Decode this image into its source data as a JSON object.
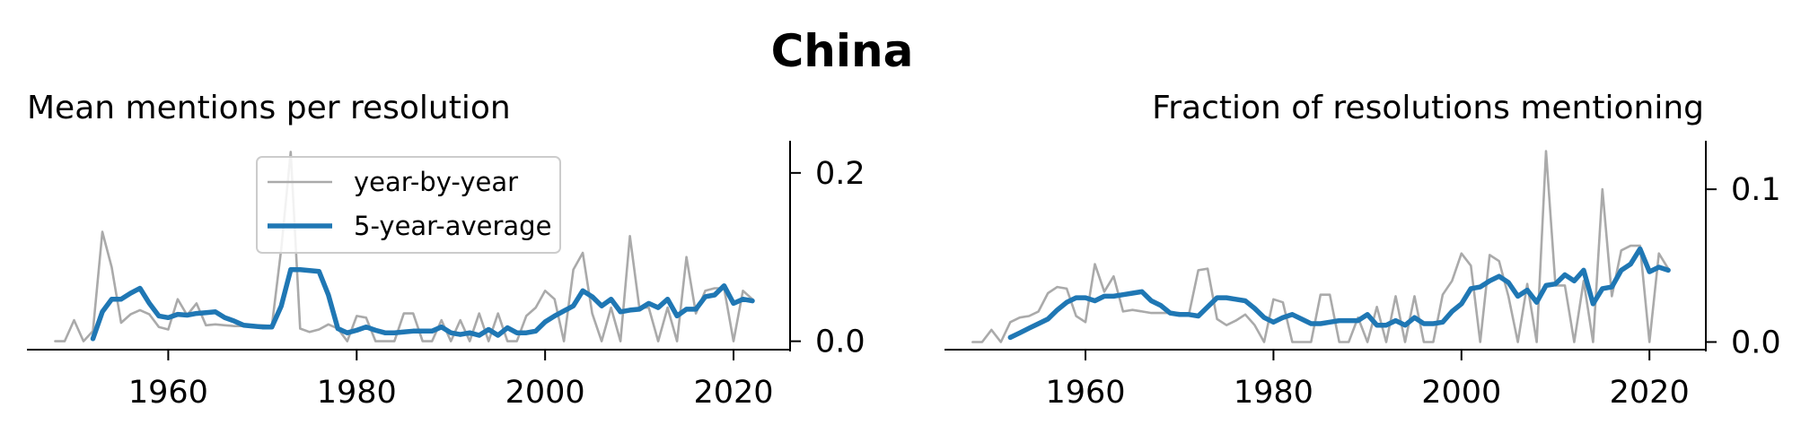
{
  "figure": {
    "title": "China"
  },
  "colors": {
    "yearly": "#aaaaaa",
    "average": "#1f77b4",
    "axis": "#000000"
  },
  "legend": {
    "position": "upper-center",
    "entries": [
      "year-by-year",
      "5-year-average"
    ]
  },
  "chart_data": [
    {
      "type": "line",
      "title": "Mean mentions per resolution",
      "xlabel": "",
      "ylabel": "",
      "ylabel_position": "right",
      "xlim": [
        1945,
        2026
      ],
      "ylim": [
        -0.01,
        0.235
      ],
      "xticks": [
        1960,
        1980,
        2000,
        2020
      ],
      "yticks": [
        0.0,
        0.2
      ],
      "ytick_labels": [
        "0.0",
        "0.2"
      ],
      "grid": false,
      "series": [
        {
          "name": "year-by-year",
          "x": [
            1948,
            1949,
            1950,
            1951,
            1952,
            1953,
            1954,
            1955,
            1956,
            1957,
            1958,
            1959,
            1960,
            1961,
            1962,
            1963,
            1964,
            1965,
            1966,
            1967,
            1968,
            1969,
            1970,
            1971,
            1972,
            1973,
            1974,
            1975,
            1976,
            1977,
            1978,
            1979,
            1980,
            1981,
            1982,
            1983,
            1984,
            1985,
            1986,
            1987,
            1988,
            1989,
            1990,
            1991,
            1992,
            1993,
            1994,
            1995,
            1996,
            1997,
            1998,
            1999,
            2000,
            2001,
            2002,
            2003,
            2004,
            2005,
            2006,
            2007,
            2008,
            2009,
            2010,
            2011,
            2012,
            2013,
            2014,
            2015,
            2016,
            2017,
            2018,
            2019,
            2020,
            2021,
            2022
          ],
          "y": [
            0.0,
            0.0,
            0.025,
            0.0,
            0.012,
            0.13,
            0.088,
            0.022,
            0.032,
            0.037,
            0.032,
            0.017,
            0.014,
            0.05,
            0.031,
            0.045,
            0.019,
            0.02,
            0.019,
            0.018,
            0.018,
            0.019,
            0.019,
            0.018,
            0.11,
            0.225,
            0.015,
            0.011,
            0.014,
            0.02,
            0.015,
            0.0,
            0.03,
            0.028,
            0.0,
            0.0,
            0.0,
            0.033,
            0.033,
            0.0,
            0.0,
            0.025,
            0.0,
            0.025,
            0.0,
            0.033,
            0.0,
            0.033,
            0.0,
            0.0,
            0.03,
            0.04,
            0.06,
            0.05,
            0.0,
            0.085,
            0.105,
            0.033,
            0.0,
            0.04,
            0.0,
            0.125,
            0.04,
            0.04,
            0.0,
            0.04,
            0.0,
            0.1,
            0.033,
            0.06,
            0.063,
            0.063,
            0.0,
            0.06,
            0.05
          ]
        },
        {
          "name": "5-year-average",
          "x": [
            1952,
            1953,
            1954,
            1955,
            1956,
            1957,
            1958,
            1959,
            1960,
            1961,
            1962,
            1963,
            1964,
            1965,
            1966,
            1967,
            1968,
            1969,
            1970,
            1971,
            1972,
            1973,
            1974,
            1975,
            1976,
            1977,
            1978,
            1979,
            1980,
            1981,
            1982,
            1983,
            1984,
            1985,
            1986,
            1987,
            1988,
            1989,
            1990,
            1991,
            1992,
            1993,
            1994,
            1995,
            1996,
            1997,
            1998,
            1999,
            2000,
            2001,
            2002,
            2003,
            2004,
            2005,
            2006,
            2007,
            2008,
            2009,
            2010,
            2011,
            2012,
            2013,
            2014,
            2015,
            2016,
            2017,
            2018,
            2019,
            2020,
            2021,
            2022
          ],
          "y": [
            0.003,
            0.035,
            0.05,
            0.05,
            0.057,
            0.063,
            0.045,
            0.03,
            0.028,
            0.032,
            0.031,
            0.033,
            0.034,
            0.035,
            0.028,
            0.024,
            0.019,
            0.018,
            0.017,
            0.017,
            0.042,
            0.085,
            0.085,
            0.084,
            0.083,
            0.055,
            0.015,
            0.01,
            0.013,
            0.017,
            0.013,
            0.01,
            0.01,
            0.011,
            0.012,
            0.012,
            0.012,
            0.017,
            0.01,
            0.008,
            0.01,
            0.007,
            0.014,
            0.007,
            0.016,
            0.01,
            0.01,
            0.012,
            0.023,
            0.03,
            0.036,
            0.042,
            0.06,
            0.053,
            0.042,
            0.05,
            0.035,
            0.037,
            0.038,
            0.045,
            0.04,
            0.05,
            0.03,
            0.038,
            0.038,
            0.053,
            0.055,
            0.066,
            0.045,
            0.05,
            0.048
          ]
        }
      ]
    },
    {
      "type": "line",
      "title": "Fraction of resolutions mentioning",
      "xlabel": "",
      "ylabel": "",
      "ylabel_position": "right",
      "xlim": [
        1945,
        2026
      ],
      "ylim": [
        -0.005,
        0.13
      ],
      "xticks": [
        1960,
        1980,
        2000,
        2020
      ],
      "yticks": [
        0.0,
        0.1
      ],
      "ytick_labels": [
        "0.0",
        "0.1"
      ],
      "grid": false,
      "series": [
        {
          "name": "year-by-year",
          "x": [
            1948,
            1949,
            1950,
            1951,
            1952,
            1953,
            1954,
            1955,
            1956,
            1957,
            1958,
            1959,
            1960,
            1961,
            1962,
            1963,
            1964,
            1965,
            1966,
            1967,
            1968,
            1969,
            1970,
            1971,
            1972,
            1973,
            1974,
            1975,
            1976,
            1977,
            1978,
            1979,
            1980,
            1981,
            1982,
            1983,
            1984,
            1985,
            1986,
            1987,
            1988,
            1989,
            1990,
            1991,
            1992,
            1993,
            1994,
            1995,
            1996,
            1997,
            1998,
            1999,
            2000,
            2001,
            2002,
            2003,
            2004,
            2005,
            2006,
            2007,
            2008,
            2009,
            2010,
            2011,
            2012,
            2013,
            2014,
            2015,
            2016,
            2017,
            2018,
            2019,
            2020,
            2021,
            2022
          ],
          "y": [
            0.0,
            0.0,
            0.008,
            0.0,
            0.013,
            0.016,
            0.017,
            0.02,
            0.032,
            0.036,
            0.035,
            0.017,
            0.013,
            0.051,
            0.033,
            0.043,
            0.02,
            0.021,
            0.02,
            0.019,
            0.019,
            0.019,
            0.019,
            0.018,
            0.047,
            0.048,
            0.015,
            0.011,
            0.014,
            0.018,
            0.011,
            0.0,
            0.028,
            0.026,
            0.0,
            0.0,
            0.0,
            0.031,
            0.031,
            0.0,
            0.0,
            0.016,
            0.0,
            0.023,
            0.0,
            0.03,
            0.0,
            0.03,
            0.0,
            0.0,
            0.031,
            0.04,
            0.058,
            0.05,
            0.0,
            0.057,
            0.053,
            0.03,
            0.0,
            0.038,
            0.0,
            0.125,
            0.037,
            0.037,
            0.0,
            0.04,
            0.0,
            0.1,
            0.03,
            0.06,
            0.063,
            0.063,
            0.0,
            0.058,
            0.048
          ]
        },
        {
          "name": "5-year-average",
          "x": [
            1952,
            1953,
            1954,
            1955,
            1956,
            1957,
            1958,
            1959,
            1960,
            1961,
            1962,
            1963,
            1964,
            1965,
            1966,
            1967,
            1968,
            1969,
            1970,
            1971,
            1972,
            1973,
            1974,
            1975,
            1976,
            1977,
            1978,
            1979,
            1980,
            1981,
            1982,
            1983,
            1984,
            1985,
            1986,
            1987,
            1988,
            1989,
            1990,
            1991,
            1992,
            1993,
            1994,
            1995,
            1996,
            1997,
            1998,
            1999,
            2000,
            2001,
            2002,
            2003,
            2004,
            2005,
            2006,
            2007,
            2008,
            2009,
            2010,
            2011,
            2012,
            2013,
            2014,
            2015,
            2016,
            2017,
            2018,
            2019,
            2020,
            2021,
            2022
          ],
          "y": [
            0.003,
            0.006,
            0.009,
            0.012,
            0.015,
            0.021,
            0.026,
            0.029,
            0.029,
            0.027,
            0.03,
            0.03,
            0.031,
            0.032,
            0.033,
            0.027,
            0.024,
            0.019,
            0.018,
            0.018,
            0.017,
            0.023,
            0.029,
            0.029,
            0.028,
            0.027,
            0.022,
            0.016,
            0.013,
            0.016,
            0.018,
            0.015,
            0.012,
            0.012,
            0.013,
            0.014,
            0.014,
            0.014,
            0.018,
            0.011,
            0.011,
            0.014,
            0.011,
            0.016,
            0.012,
            0.012,
            0.013,
            0.02,
            0.025,
            0.035,
            0.036,
            0.04,
            0.043,
            0.039,
            0.03,
            0.034,
            0.026,
            0.037,
            0.038,
            0.044,
            0.04,
            0.047,
            0.025,
            0.035,
            0.036,
            0.047,
            0.051,
            0.061,
            0.046,
            0.049,
            0.047
          ]
        }
      ]
    }
  ]
}
